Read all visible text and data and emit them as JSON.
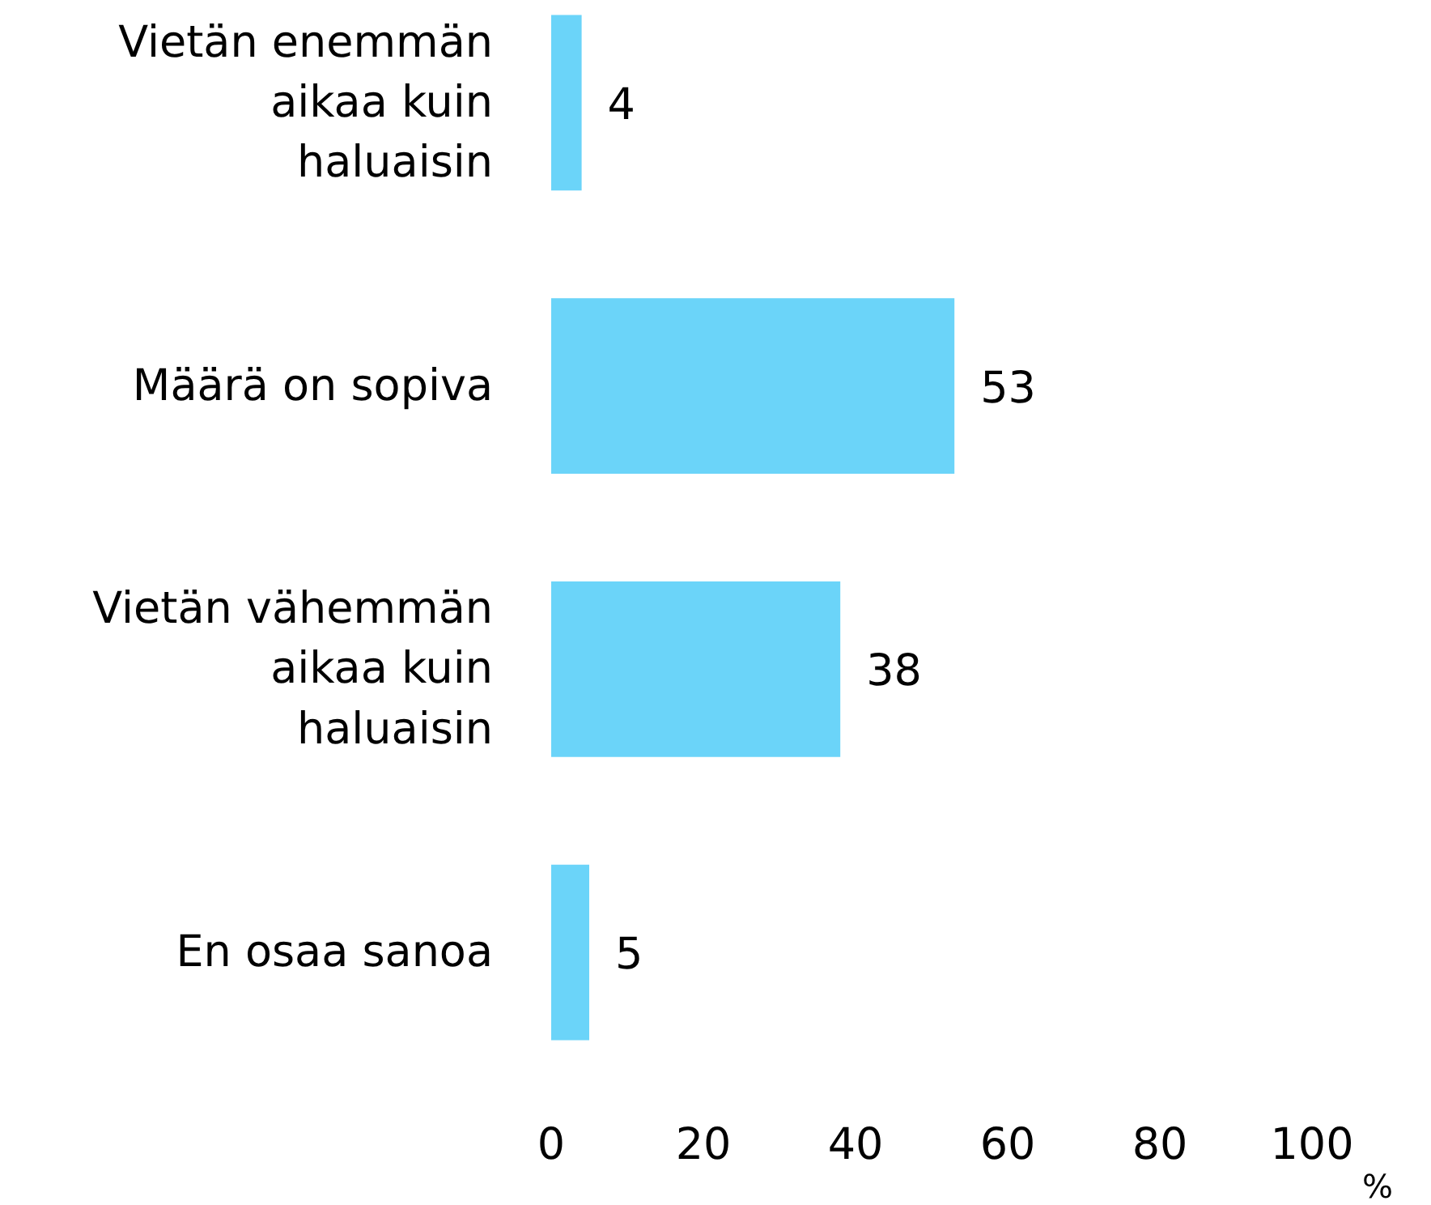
{
  "chart_data": {
    "type": "bar",
    "orientation": "horizontal",
    "categories": [
      "Vietän enemmän aikaa kuin haluaisin",
      "Määrä on sopiva",
      "Vietän vähemmän aikaa kuin haluaisin",
      "En osaa sanoa"
    ],
    "values": [
      4,
      53,
      38,
      5
    ],
    "color": "#6bd4f9",
    "xlim": [
      0,
      100
    ],
    "xticks": [
      0,
      20,
      40,
      60,
      80,
      100
    ],
    "xlabel": "%",
    "data_labels": true,
    "grid": false
  }
}
